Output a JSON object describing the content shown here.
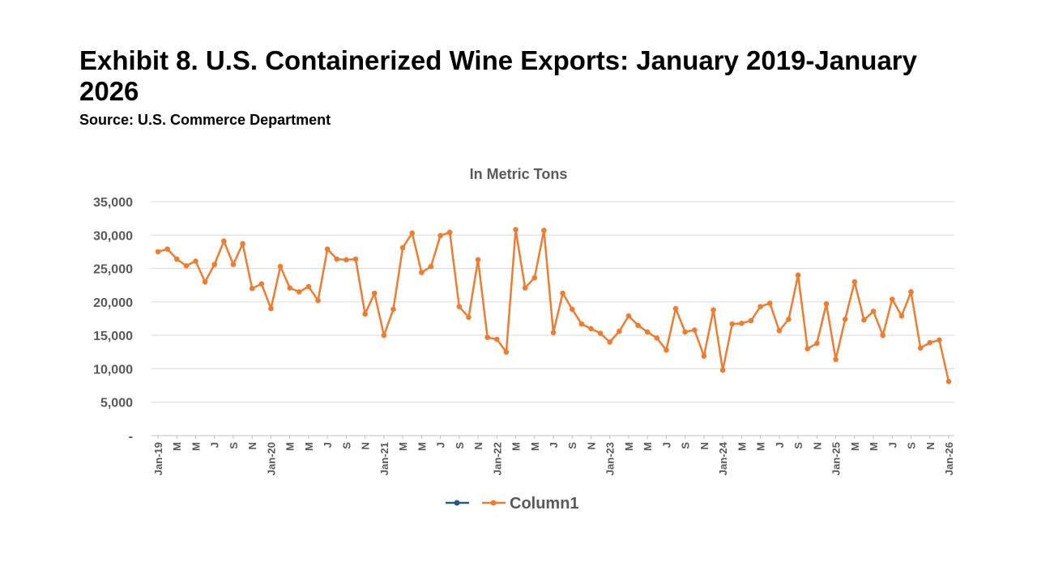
{
  "title": "Exhibit 8. U.S. Containerized Wine Exports: January 2019-January 2026",
  "source": "Source: U.S. Commerce Department",
  "colors": {
    "series": "#ed7d31",
    "legend_extra": "#1f5f8b",
    "grid": "#d9d9d9",
    "axis": "#bfbfbf",
    "text": "#595959"
  },
  "chart_data": {
    "type": "line",
    "title": "In Metric Tons",
    "xlabel": "",
    "ylabel": "",
    "ylim": [
      0,
      35000
    ],
    "yticks": [
      0,
      5000,
      10000,
      15000,
      20000,
      25000,
      30000,
      35000
    ],
    "ytick_labels": [
      "-",
      "5,000",
      "10,000",
      "15,000",
      "20,000",
      "25,000",
      "30,000",
      "35,000"
    ],
    "x_tick_labels": [
      "Jan-19",
      "M",
      "M",
      "J",
      "S",
      "N",
      "Jan-20",
      "M",
      "M",
      "J",
      "S",
      "N",
      "Jan-21",
      "M",
      "M",
      "J",
      "S",
      "N",
      "Jan-22",
      "M",
      "M",
      "J",
      "S",
      "N",
      "Jan-23",
      "M",
      "M",
      "J",
      "S",
      "N",
      "Jan-24",
      "M",
      "M",
      "J",
      "S",
      "N",
      "Jan-25",
      "M",
      "M",
      "J",
      "S",
      "N",
      "Jan-26"
    ],
    "legend": [
      "",
      "Column1"
    ],
    "series": [
      {
        "name": "Column1",
        "values": [
          27500,
          27900,
          26400,
          25400,
          26100,
          23000,
          25600,
          29100,
          25600,
          28700,
          22000,
          22700,
          19000,
          25300,
          22100,
          21500,
          22300,
          20200,
          27900,
          26400,
          26300,
          26400,
          18200,
          21300,
          15000,
          18900,
          28100,
          30300,
          24400,
          25300,
          29900,
          30400,
          19300,
          17700,
          26300,
          14700,
          14400,
          12500,
          30800,
          22100,
          23600,
          30700,
          15400,
          21300,
          18900,
          16700,
          16000,
          15300,
          14000,
          15600,
          17900,
          16500,
          15500,
          14600,
          12800,
          19000,
          15500,
          15800,
          11900,
          18800,
          9800,
          16700,
          16800,
          17200,
          19300,
          19800,
          15700,
          17400,
          24000,
          13000,
          13800,
          19700,
          11400,
          17400,
          23000,
          17300,
          18600,
          15000,
          20400,
          17900,
          21500,
          13100,
          13900,
          14300,
          8100
        ]
      }
    ]
  }
}
